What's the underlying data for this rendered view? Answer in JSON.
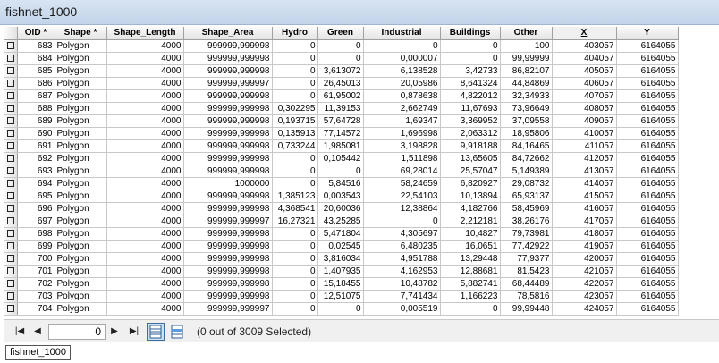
{
  "window": {
    "title": "fishnet_1000"
  },
  "table": {
    "columns": [
      "OID *",
      "Shape *",
      "Shape_Length",
      "Shape_Area",
      "Hydro",
      "Green",
      "Industrial",
      "Buildings",
      "Other",
      "X",
      "Y"
    ],
    "rows": [
      [
        "683",
        "Polygon",
        "4000",
        "999999,999998",
        "0",
        "0",
        "0",
        "0",
        "100",
        "403057",
        "6164055"
      ],
      [
        "684",
        "Polygon",
        "4000",
        "999999,999998",
        "0",
        "0",
        "0,000007",
        "0",
        "99,99999",
        "404057",
        "6164055"
      ],
      [
        "685",
        "Polygon",
        "4000",
        "999999,999998",
        "0",
        "3,613072",
        "6,138528",
        "3,42733",
        "86,82107",
        "405057",
        "6164055"
      ],
      [
        "686",
        "Polygon",
        "4000",
        "999999,999997",
        "0",
        "26,45013",
        "20,05986",
        "8,641324",
        "44,84869",
        "406057",
        "6164055"
      ],
      [
        "687",
        "Polygon",
        "4000",
        "999999,999998",
        "0",
        "61,95002",
        "0,878638",
        "4,822012",
        "32,34933",
        "407057",
        "6164055"
      ],
      [
        "688",
        "Polygon",
        "4000",
        "999999,999998",
        "0,302295",
        "11,39153",
        "2,662749",
        "11,67693",
        "73,96649",
        "408057",
        "6164055"
      ],
      [
        "689",
        "Polygon",
        "4000",
        "999999,999998",
        "0,193715",
        "57,64728",
        "1,69347",
        "3,369952",
        "37,09558",
        "409057",
        "6164055"
      ],
      [
        "690",
        "Polygon",
        "4000",
        "999999,999998",
        "0,135913",
        "77,14572",
        "1,696998",
        "2,063312",
        "18,95806",
        "410057",
        "6164055"
      ],
      [
        "691",
        "Polygon",
        "4000",
        "999999,999998",
        "0,733244",
        "1,985081",
        "3,198828",
        "9,918188",
        "84,16465",
        "411057",
        "6164055"
      ],
      [
        "692",
        "Polygon",
        "4000",
        "999999,999998",
        "0",
        "0,105442",
        "1,511898",
        "13,65605",
        "84,72662",
        "412057",
        "6164055"
      ],
      [
        "693",
        "Polygon",
        "4000",
        "999999,999998",
        "0",
        "0",
        "69,28014",
        "25,57047",
        "5,149389",
        "413057",
        "6164055"
      ],
      [
        "694",
        "Polygon",
        "4000",
        "1000000",
        "0",
        "5,84516",
        "58,24659",
        "6,820927",
        "29,08732",
        "414057",
        "6164055"
      ],
      [
        "695",
        "Polygon",
        "4000",
        "999999,999998",
        "1,385123",
        "0,003543",
        "22,54103",
        "10,13894",
        "65,93137",
        "415057",
        "6164055"
      ],
      [
        "696",
        "Polygon",
        "4000",
        "999999,999998",
        "4,368541",
        "20,60036",
        "12,38864",
        "4,182766",
        "58,45969",
        "416057",
        "6164055"
      ],
      [
        "697",
        "Polygon",
        "4000",
        "999999,999997",
        "16,27321",
        "43,25285",
        "0",
        "2,212181",
        "38,26176",
        "417057",
        "6164055"
      ],
      [
        "698",
        "Polygon",
        "4000",
        "999999,999998",
        "0",
        "5,471804",
        "4,305697",
        "10,4827",
        "79,73981",
        "418057",
        "6164055"
      ],
      [
        "699",
        "Polygon",
        "4000",
        "999999,999998",
        "0",
        "0,02545",
        "6,480235",
        "16,0651",
        "77,42922",
        "419057",
        "6164055"
      ],
      [
        "700",
        "Polygon",
        "4000",
        "999999,999998",
        "0",
        "3,816034",
        "4,951788",
        "13,29448",
        "77,9377",
        "420057",
        "6164055"
      ],
      [
        "701",
        "Polygon",
        "4000",
        "999999,999998",
        "0",
        "1,407935",
        "4,162953",
        "12,88681",
        "81,5423",
        "421057",
        "6164055"
      ],
      [
        "702",
        "Polygon",
        "4000",
        "999999,999998",
        "0",
        "15,18455",
        "10,48782",
        "5,882741",
        "68,44489",
        "422057",
        "6164055"
      ],
      [
        "703",
        "Polygon",
        "4000",
        "999999,999998",
        "0",
        "12,51075",
        "7,741434",
        "1,166223",
        "78,5816",
        "423057",
        "6164055"
      ],
      [
        "704",
        "Polygon",
        "4000",
        "999999,999997",
        "0",
        "0",
        "0,005519",
        "0",
        "99,99448",
        "424057",
        "6164055"
      ]
    ]
  },
  "navigation": {
    "current_record": "0",
    "status": "(0 out of 3009 Selected)"
  },
  "tabs": [
    {
      "label": "fishnet_1000"
    }
  ]
}
